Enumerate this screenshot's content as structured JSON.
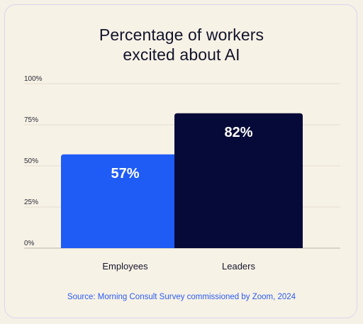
{
  "chart_data": {
    "type": "bar",
    "title": [
      "Percentage of workers",
      "excited about AI"
    ],
    "categories": [
      "Employees",
      "Leaders"
    ],
    "values": [
      57,
      82
    ],
    "data_labels": [
      "57%",
      "82%"
    ],
    "y_ticks": [
      "0%",
      "25%",
      "50%",
      "75%",
      "100%"
    ],
    "ylim": [
      0,
      100
    ],
    "grid": true,
    "colors": [
      "#1f5cf5",
      "#060a38"
    ],
    "source": "Source: Morning Consult Survey commissioned by Zoom, 2024"
  }
}
